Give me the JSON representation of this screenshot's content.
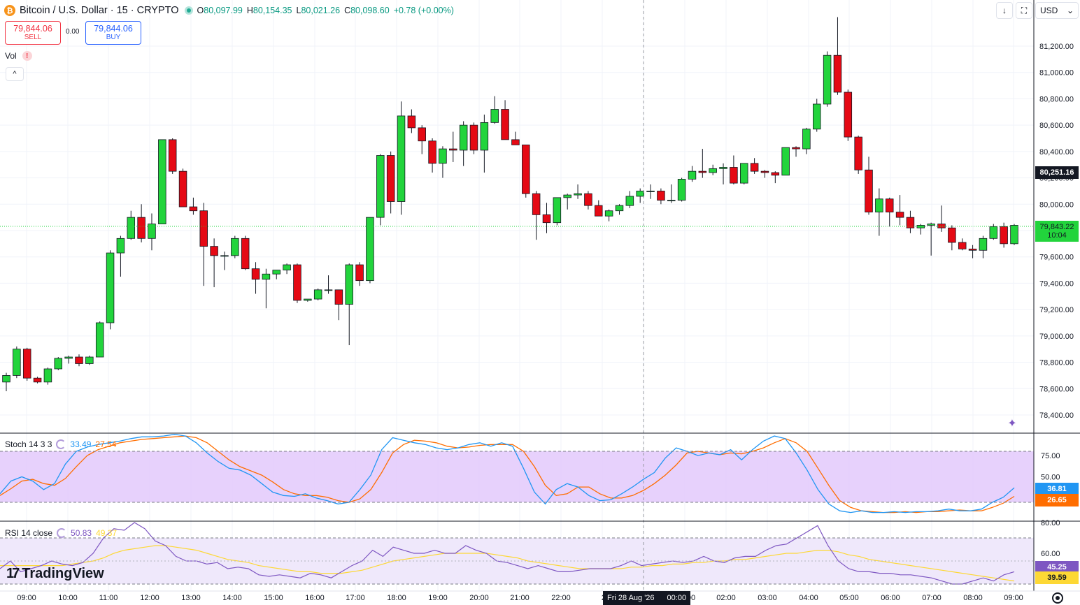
{
  "header": {
    "symbol_title": "Bitcoin / U.S. Dollar · 15 · CRYPTO",
    "ohlc": {
      "open_label": "O",
      "open": "80,097.99",
      "high_label": "H",
      "high": "80,154.35",
      "low_label": "L",
      "low": "80,021.26",
      "close_label": "C",
      "close": "80,098.60",
      "change": "+0.78 (+0.00%)"
    }
  },
  "trade": {
    "sell_price": "79,844.06",
    "sell_label": "SELL",
    "spread": "0.00",
    "buy_price": "79,844.06",
    "buy_label": "BUY"
  },
  "volume": {
    "label": "Vol",
    "warning": "!"
  },
  "toolbar": {
    "collapse_glyph": "^",
    "down_glyph": "↓",
    "expand_glyph": "⛶",
    "currency": "USD",
    "currency_caret": "⌄"
  },
  "price_axis": {
    "labels": [
      "81,200.00",
      "81,000.00",
      "80,800.00",
      "80,600.00",
      "80,400.00",
      "80,200.00",
      "80,000.00",
      "79,600.00",
      "79,400.00",
      "79,200.00",
      "79,000.00",
      "78,800.00",
      "78,600.00",
      "78,400.00"
    ],
    "crosshair_price": "80,251.16",
    "current_price": "79,843.22",
    "countdown": "10:04"
  },
  "time_axis": {
    "labels": [
      "09:00",
      "10:00",
      "11:00",
      "12:00",
      "13:00",
      "14:00",
      "15:00",
      "16:00",
      "17:00",
      "18:00",
      "19:00",
      "20:00",
      "21:00",
      "22:00",
      "23",
      "Fri 28 Aug '26",
      "00:00",
      "00",
      "02:00",
      "03:00",
      "04:00",
      "05:00",
      "06:00",
      "07:00",
      "08:00",
      "09:00"
    ],
    "crosshair_label": "Fri 28 Aug '26",
    "crosshair_time": "00:00"
  },
  "stoch": {
    "title": "Stoch 14 3 3",
    "k_value": "33.49",
    "d_value": "27.54",
    "axis_labels": [
      "75.00",
      "50.00"
    ],
    "k_tag": "36.81",
    "d_tag": "26.65"
  },
  "rsi": {
    "title": "RSI 14 close",
    "rsi_value": "50.83",
    "ma_value": "49.37",
    "axis_labels": [
      "80.00",
      "60.00"
    ],
    "rsi_tag": "45.25",
    "ma_tag": "39.59"
  },
  "branding": {
    "logo_text": "TradingView",
    "logo_mark": "17"
  },
  "colors": {
    "up": "#22d43c",
    "down": "#e50914",
    "stoch_k": "#2196f3",
    "stoch_d": "#ff6d00",
    "rsi": "#7e57c2",
    "rsi_ma": "#fdd835",
    "stoch_band": "#e1c6fb",
    "rsi_band": "#efe8fb"
  },
  "chart_data": {
    "type": "candlestick",
    "interval": "15",
    "price_range": [
      78300,
      81500
    ],
    "x_start": "2026-08-27 09:00",
    "x_end": "2026-08-28 09:00",
    "candles": [
      [
        78650,
        78720,
        78580,
        78700
      ],
      [
        78700,
        78920,
        78680,
        78900
      ],
      [
        78900,
        78910,
        78660,
        78680
      ],
      [
        78680,
        78690,
        78640,
        78650
      ],
      [
        78650,
        78760,
        78630,
        78750
      ],
      [
        78750,
        78840,
        78740,
        78830
      ],
      [
        78830,
        78850,
        78790,
        78840
      ],
      [
        78840,
        78860,
        78770,
        78790
      ],
      [
        78790,
        78850,
        78780,
        78840
      ],
      [
        78840,
        79110,
        78840,
        79100
      ],
      [
        79100,
        79650,
        79050,
        79630
      ],
      [
        79630,
        79760,
        79450,
        79740
      ],
      [
        79740,
        79950,
        79730,
        79900
      ],
      [
        79900,
        80000,
        79710,
        79740
      ],
      [
        79740,
        79930,
        79650,
        79850
      ],
      [
        79850,
        80490,
        79850,
        80490
      ],
      [
        80490,
        80500,
        80230,
        80250
      ],
      [
        80250,
        80270,
        79980,
        79980
      ],
      [
        79980,
        80050,
        79920,
        79950
      ],
      [
        79950,
        80010,
        79380,
        79680
      ],
      [
        79680,
        79740,
        79370,
        79610
      ],
      [
        79610,
        79640,
        79500,
        79610
      ],
      [
        79610,
        79760,
        79590,
        79740
      ],
      [
        79740,
        79760,
        79500,
        79510
      ],
      [
        79510,
        79560,
        79320,
        79430
      ],
      [
        79430,
        79510,
        79210,
        79470
      ],
      [
        79470,
        79500,
        79430,
        79500
      ],
      [
        79500,
        79550,
        79470,
        79540
      ],
      [
        79540,
        79550,
        79250,
        79270
      ],
      [
        79270,
        79280,
        79260,
        79280
      ],
      [
        79280,
        79360,
        79270,
        79350
      ],
      [
        79350,
        79460,
        79320,
        79350
      ],
      [
        79350,
        79350,
        79120,
        79240
      ],
      [
        79240,
        79550,
        78930,
        79540
      ],
      [
        79540,
        79560,
        79380,
        79420
      ],
      [
        79420,
        79900,
        79400,
        79900
      ],
      [
        79900,
        80380,
        79840,
        80370
      ],
      [
        80370,
        80400,
        79930,
        80020
      ],
      [
        80020,
        80780,
        79920,
        80670
      ],
      [
        80670,
        80720,
        80540,
        80580
      ],
      [
        80580,
        80600,
        80380,
        80480
      ],
      [
        80480,
        80500,
        80240,
        80310
      ],
      [
        80310,
        80440,
        80200,
        80420
      ],
      [
        80420,
        80550,
        80320,
        80410
      ],
      [
        80410,
        80630,
        80290,
        80600
      ],
      [
        80600,
        80620,
        80380,
        80410
      ],
      [
        80410,
        80680,
        80240,
        80620
      ],
      [
        80620,
        80820,
        80610,
        80720
      ],
      [
        80720,
        80790,
        80490,
        80490
      ],
      [
        80490,
        80550,
        80460,
        80450
      ],
      [
        80450,
        80450,
        80050,
        80080
      ],
      [
        80080,
        80100,
        79730,
        79920
      ],
      [
        79920,
        80010,
        79780,
        79860
      ],
      [
        79860,
        80050,
        79840,
        80050
      ],
      [
        80050,
        80080,
        79960,
        80070
      ],
      [
        80070,
        80150,
        80040,
        80080
      ],
      [
        80080,
        80100,
        79960,
        79990
      ],
      [
        79990,
        80030,
        79910,
        79910
      ],
      [
        79910,
        79960,
        79870,
        79950
      ],
      [
        79950,
        80000,
        79920,
        79990
      ],
      [
        79990,
        80100,
        79970,
        80060
      ],
      [
        80060,
        80120,
        80010,
        80100
      ],
      [
        80100,
        80150,
        80040,
        80100
      ],
      [
        80100,
        80120,
        80000,
        80030
      ],
      [
        80030,
        80150,
        80010,
        80030
      ],
      [
        80030,
        80200,
        80020,
        80190
      ],
      [
        80190,
        80290,
        80170,
        80250
      ],
      [
        80250,
        80420,
        80200,
        80240
      ],
      [
        80240,
        80300,
        80220,
        80270
      ],
      [
        80270,
        80310,
        80150,
        80280
      ],
      [
        80280,
        80370,
        80150,
        80160
      ],
      [
        80160,
        80310,
        80150,
        80310
      ],
      [
        80310,
        80350,
        80230,
        80250
      ],
      [
        80250,
        80260,
        80200,
        80240
      ],
      [
        80240,
        80250,
        80160,
        80220
      ],
      [
        80220,
        80430,
        80220,
        80430
      ],
      [
        80430,
        80440,
        80360,
        80420
      ],
      [
        80420,
        80580,
        80380,
        80570
      ],
      [
        80570,
        80800,
        80550,
        80760
      ],
      [
        80760,
        81160,
        80740,
        81130
      ],
      [
        81130,
        81420,
        80830,
        80850
      ],
      [
        80850,
        80870,
        80480,
        80510
      ],
      [
        80510,
        80520,
        80230,
        80260
      ],
      [
        80260,
        80360,
        79920,
        79940
      ],
      [
        79940,
        80120,
        79760,
        80040
      ],
      [
        80040,
        80050,
        79830,
        79940
      ],
      [
        79940,
        80070,
        79840,
        79900
      ],
      [
        79900,
        79950,
        79780,
        79820
      ],
      [
        79820,
        79850,
        79770,
        79840
      ],
      [
        79840,
        79860,
        79610,
        79850
      ],
      [
        79850,
        79990,
        79790,
        79820
      ],
      [
        79820,
        79840,
        79650,
        79710
      ],
      [
        79710,
        79740,
        79650,
        79660
      ],
      [
        79660,
        79690,
        79590,
        79650
      ],
      [
        79650,
        79760,
        79590,
        79740
      ],
      [
        79740,
        79850,
        79730,
        79830
      ],
      [
        79830,
        79860,
        79670,
        79700
      ],
      [
        79700,
        79850,
        79690,
        79840
      ]
    ],
    "stoch": {
      "range": [
        0,
        100
      ],
      "band": [
        20,
        80
      ],
      "k": [
        30,
        45,
        50,
        45,
        35,
        42,
        65,
        80,
        85,
        88,
        90,
        92,
        95,
        97,
        97,
        98,
        100,
        98,
        90,
        78,
        68,
        60,
        58,
        52,
        42,
        32,
        28,
        27,
        30,
        25,
        22,
        18,
        20,
        35,
        52,
        82,
        96,
        93,
        90,
        88,
        84,
        82,
        84,
        88,
        90,
        86,
        90,
        86,
        60,
        32,
        18,
        35,
        42,
        38,
        28,
        22,
        23,
        30,
        38,
        47,
        55,
        72,
        84,
        80,
        75,
        78,
        76,
        82,
        70,
        82,
        92,
        98,
        95,
        78,
        58,
        35,
        18,
        10,
        8,
        10,
        8,
        8,
        9,
        8,
        9,
        9,
        10,
        12,
        10,
        10,
        12,
        20,
        26,
        37
      ],
      "d": [
        28,
        36,
        45,
        47,
        42,
        40,
        48,
        62,
        75,
        82,
        86,
        90,
        92,
        94,
        95,
        96,
        97,
        98,
        96,
        90,
        80,
        70,
        62,
        57,
        52,
        44,
        35,
        30,
        28,
        28,
        26,
        22,
        20,
        24,
        35,
        55,
        78,
        88,
        93,
        92,
        90,
        86,
        84,
        85,
        87,
        88,
        88,
        88,
        80,
        62,
        40,
        28,
        30,
        38,
        38,
        30,
        25,
        25,
        28,
        34,
        42,
        52,
        64,
        78,
        80,
        78,
        76,
        78,
        77,
        80,
        84,
        90,
        95,
        90,
        80,
        60,
        40,
        22,
        14,
        10,
        9,
        8,
        8,
        9,
        8,
        9,
        9,
        10,
        11,
        10,
        10,
        14,
        19,
        27
      ]
    },
    "rsi": {
      "range": [
        30,
        85
      ],
      "band": [
        40,
        70
      ],
      "rsi": [
        50,
        55,
        48,
        50,
        52,
        55,
        53,
        52,
        54,
        60,
        70,
        76,
        75,
        80,
        76,
        68,
        65,
        58,
        55,
        55,
        53,
        54,
        50,
        51,
        50,
        46,
        45,
        46,
        45,
        44,
        47,
        46,
        44,
        48,
        52,
        55,
        62,
        58,
        64,
        62,
        60,
        60,
        62,
        60,
        60,
        65,
        62,
        60,
        55,
        54,
        52,
        50,
        52,
        50,
        48,
        48,
        49,
        50,
        50,
        50,
        52,
        55,
        52,
        53,
        54,
        55,
        54,
        55,
        58,
        55,
        54,
        57,
        58,
        58,
        62,
        65,
        66,
        70,
        74,
        78,
        65,
        55,
        50,
        48,
        48,
        47,
        47,
        46,
        46,
        45,
        44,
        42,
        40,
        40,
        42,
        44,
        42,
        46,
        48
      ],
      "ma": [
        52,
        52,
        52,
        52,
        52,
        52,
        52,
        53,
        54,
        55,
        57,
        60,
        62,
        63,
        64,
        65,
        65,
        64,
        63,
        62,
        60,
        58,
        56,
        55,
        54,
        52,
        51,
        50,
        49,
        48,
        48,
        47,
        47,
        47,
        48,
        49,
        51,
        53,
        55,
        56,
        57,
        58,
        59,
        60,
        60,
        60,
        60,
        60,
        59,
        58,
        57,
        55,
        54,
        53,
        52,
        51,
        50,
        50,
        50,
        50,
        50,
        51,
        51,
        52,
        52,
        53,
        53,
        54,
        54,
        55,
        55,
        56,
        56,
        57,
        58,
        59,
        60,
        60,
        61,
        62,
        62,
        61,
        59,
        58,
        56,
        55,
        54,
        53,
        52,
        51,
        50,
        49,
        48,
        47,
        46,
        45,
        44,
        43,
        42
      ]
    }
  }
}
